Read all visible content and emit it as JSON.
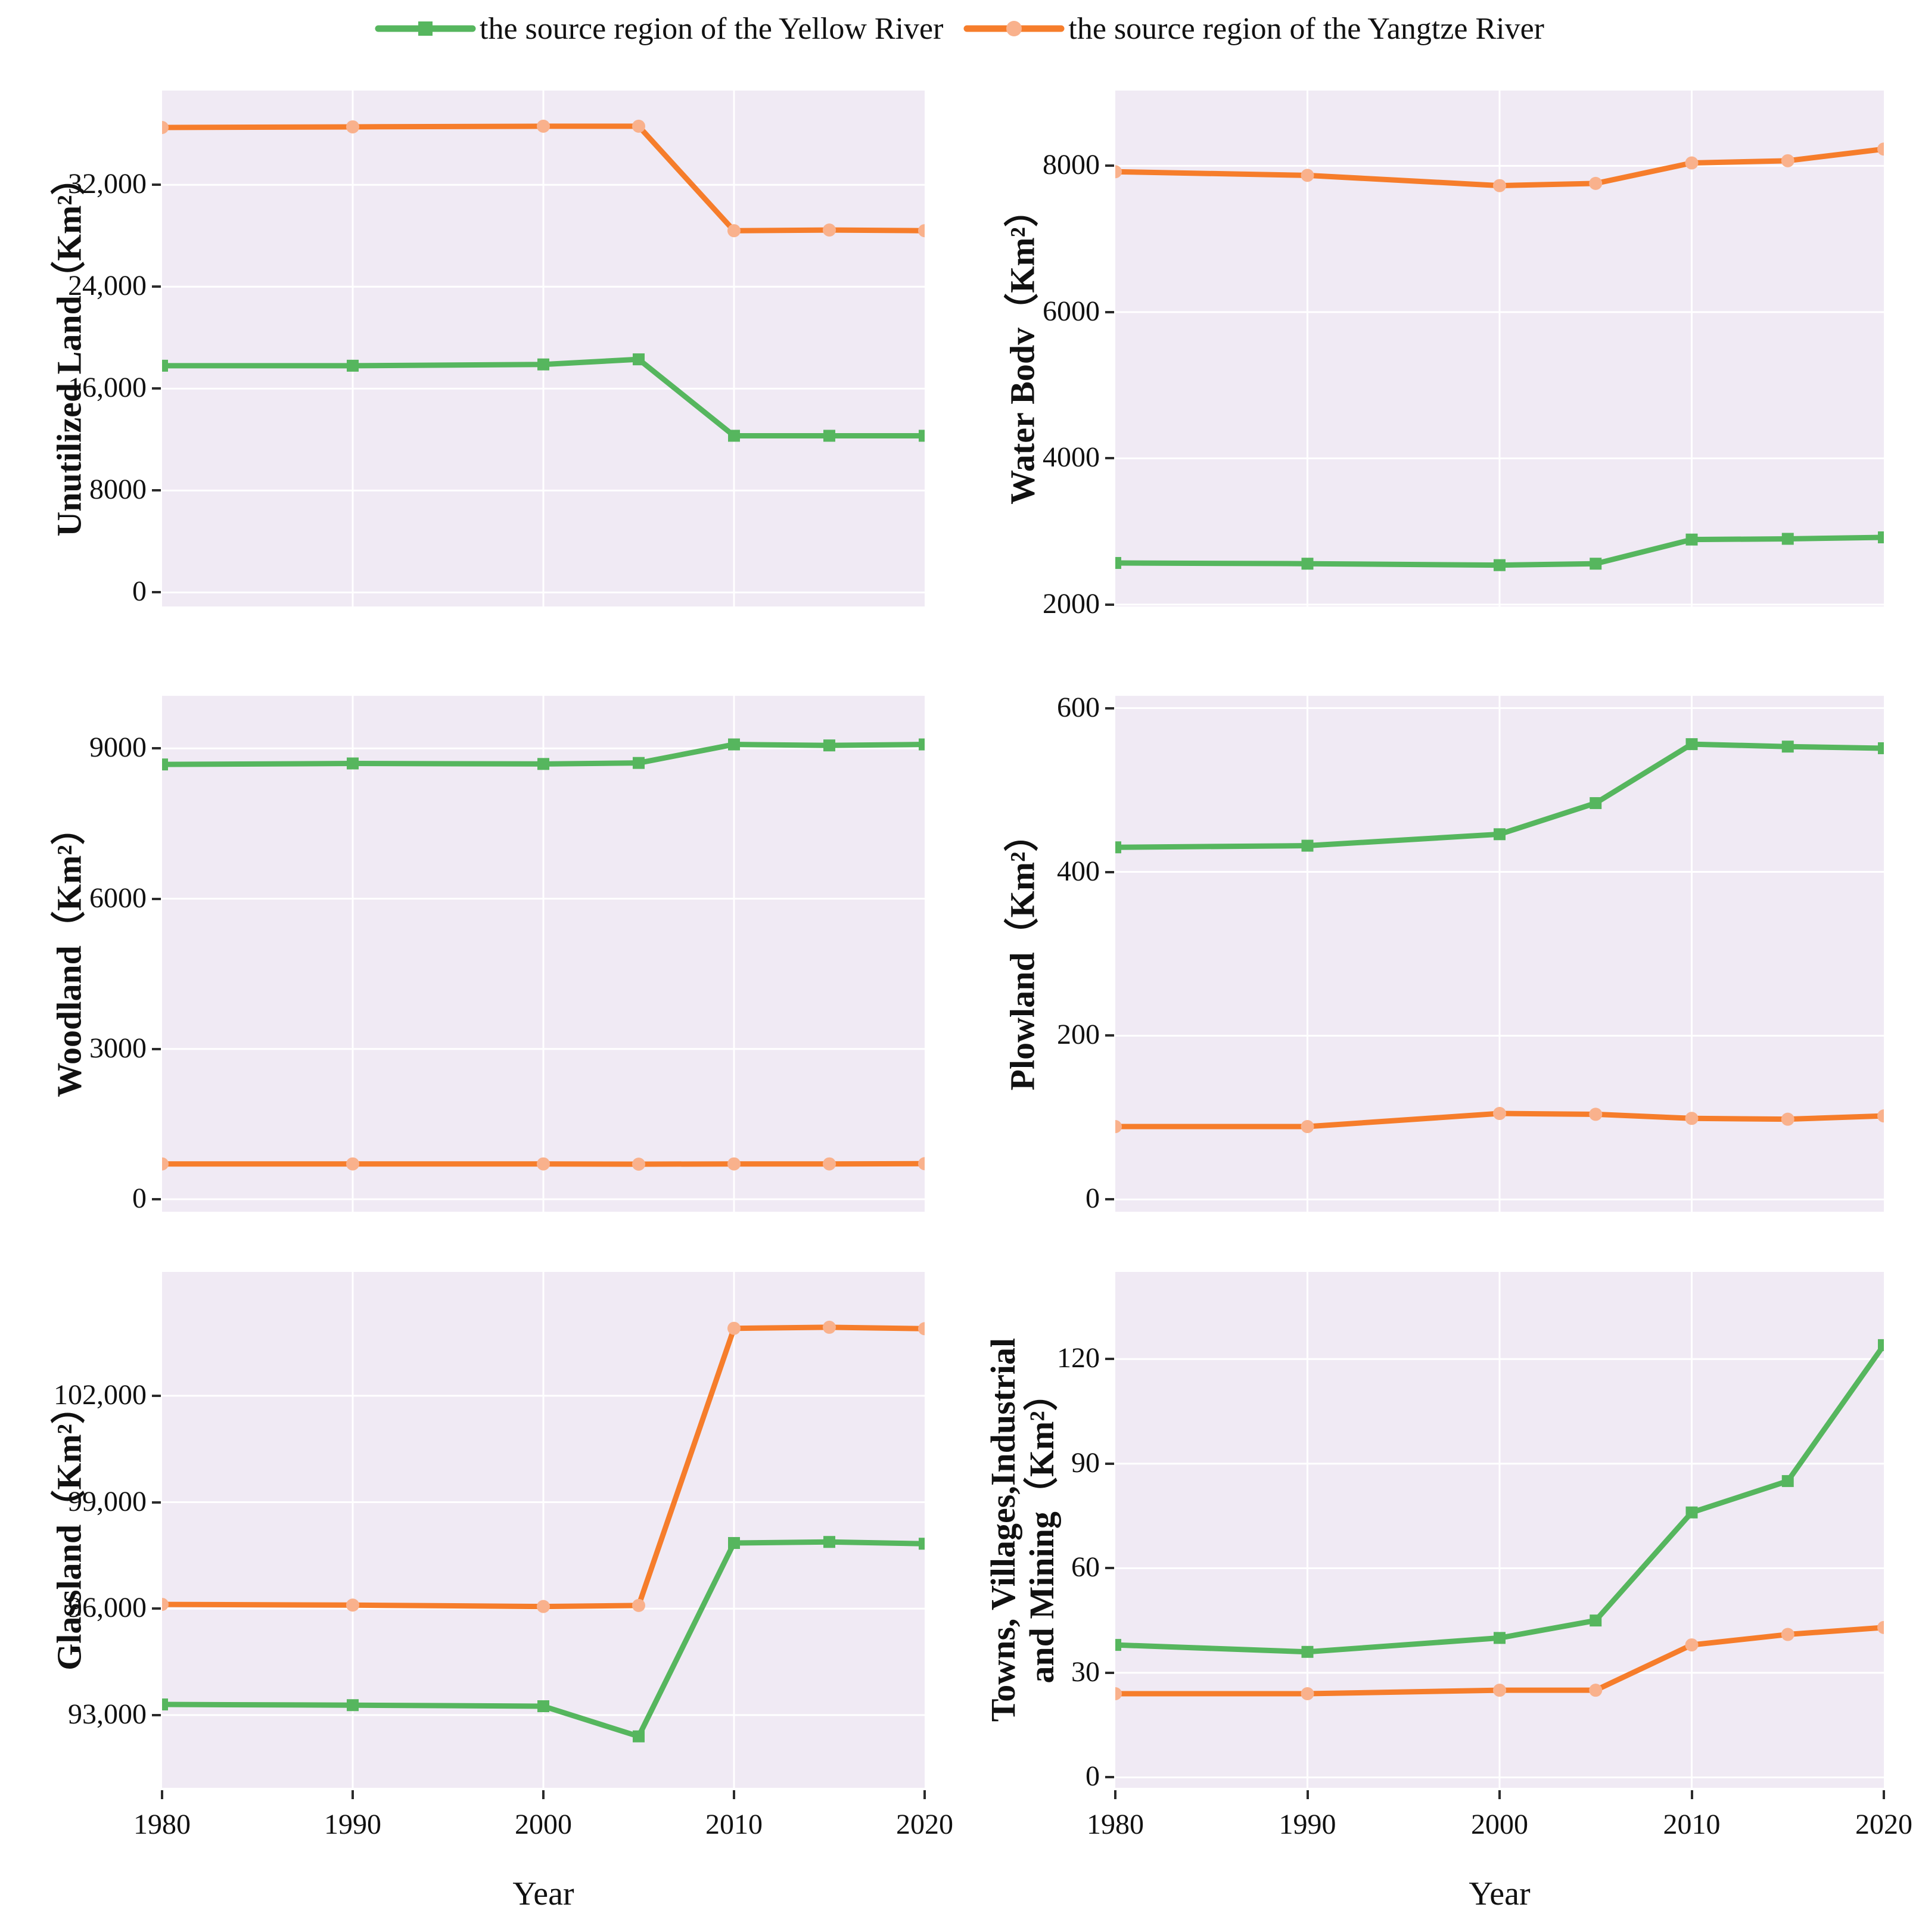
{
  "legend": {
    "items": [
      {
        "label": "the source region of the Yellow River",
        "series": "yellow",
        "marker": "square"
      },
      {
        "label": "the source region of the Yangtze River",
        "series": "yangtze",
        "marker": "circle"
      }
    ]
  },
  "colors": {
    "yellow_series": "#56b65e",
    "yangtze_series": "#f67d2b",
    "yangtze_marker_fill": "#f9b18c",
    "plot_bg": "#f0eaf4",
    "grid": "#ffffff",
    "tick_mark": "#2b2b2b",
    "text": "#111111"
  },
  "figure": {
    "x_axis_label": "Year",
    "x_ticks": [
      "1980",
      "1990",
      "2000",
      "2010",
      "2020"
    ],
    "x_tick_years": [
      1980,
      1990,
      2000,
      2010,
      2020
    ],
    "x_domain": [
      1980,
      2020
    ]
  },
  "chart_data": [
    {
      "type": "line",
      "panel": "unutilized-land",
      "ylabel_lines": [
        "Unutilized Land（Km²）"
      ],
      "xlabel": "Year",
      "x": [
        1980,
        1990,
        2000,
        2005,
        2010,
        2015,
        2020
      ],
      "xticks": [
        1980,
        1990,
        2000,
        2010,
        2020
      ],
      "ylim": [
        -1100,
        39400
      ],
      "grid": true,
      "yticks": [
        {
          "v": 0,
          "label": "0"
        },
        {
          "v": 8000,
          "label": "8000"
        },
        {
          "v": 16000,
          "label": "16,000"
        },
        {
          "v": 24000,
          "label": "24,000"
        },
        {
          "v": 32000,
          "label": "32,000"
        }
      ],
      "series": [
        {
          "name": "the source region of the Yellow River",
          "values": [
            17800,
            17800,
            17900,
            18300,
            12300,
            12300,
            12300
          ]
        },
        {
          "name": "the source region of the Yangtze River",
          "values": [
            36500,
            36550,
            36600,
            36600,
            28400,
            28450,
            28400
          ]
        }
      ]
    },
    {
      "type": "line",
      "panel": "water-body",
      "ylabel_lines": [
        "Water Bodv（Km²）"
      ],
      "xlabel": "Year",
      "x": [
        1980,
        1990,
        2000,
        2005,
        2010,
        2015,
        2020
      ],
      "xticks": [
        1980,
        1990,
        2000,
        2010,
        2020
      ],
      "ylim": [
        1975,
        9030
      ],
      "grid": true,
      "yticks": [
        {
          "v": 2000,
          "label": "2000"
        },
        {
          "v": 4000,
          "label": "4000"
        },
        {
          "v": 6000,
          "label": "6000"
        },
        {
          "v": 8000,
          "label": "8000"
        }
      ],
      "series": [
        {
          "name": "the source region of the Yellow River",
          "values": [
            2570,
            2560,
            2540,
            2560,
            2890,
            2900,
            2920
          ]
        },
        {
          "name": "the source region of the Yangtze River",
          "values": [
            7920,
            7870,
            7730,
            7760,
            8040,
            8070,
            8230
          ]
        }
      ]
    },
    {
      "type": "line",
      "panel": "woodland",
      "ylabel_lines": [
        "Woodland（Km²）"
      ],
      "xlabel": "Year",
      "x": [
        1980,
        1990,
        2000,
        2005,
        2010,
        2015,
        2020
      ],
      "xticks": [
        1980,
        1990,
        2000,
        2010,
        2020
      ],
      "ylim": [
        -250,
        10050
      ],
      "grid": true,
      "yticks": [
        {
          "v": 0,
          "label": "0"
        },
        {
          "v": 3000,
          "label": "3000"
        },
        {
          "v": 6000,
          "label": "6000"
        },
        {
          "v": 9000,
          "label": "9000"
        }
      ],
      "series": [
        {
          "name": "the source region of the Yellow River",
          "values": [
            8680,
            8700,
            8690,
            8710,
            9080,
            9060,
            9080
          ]
        },
        {
          "name": "the source region of the Yangtze River",
          "values": [
            705,
            705,
            705,
            700,
            705,
            705,
            710
          ]
        }
      ]
    },
    {
      "type": "line",
      "panel": "plowland",
      "ylabel_lines": [
        "Plowland（Km²）"
      ],
      "xlabel": "Year",
      "x": [
        1980,
        1990,
        2000,
        2005,
        2010,
        2015,
        2020
      ],
      "xticks": [
        1980,
        1990,
        2000,
        2010,
        2020
      ],
      "ylim": [
        -15,
        615
      ],
      "grid": true,
      "yticks": [
        {
          "v": 0,
          "label": "0"
        },
        {
          "v": 200,
          "label": "200"
        },
        {
          "v": 400,
          "label": "400"
        },
        {
          "v": 600,
          "label": "600"
        }
      ],
      "series": [
        {
          "name": "the source region of the Yellow River",
          "values": [
            430,
            432,
            446,
            484,
            556,
            553,
            551
          ]
        },
        {
          "name": "the source region of the Yangtze River",
          "values": [
            89,
            89,
            105,
            104,
            99,
            98,
            102
          ]
        }
      ]
    },
    {
      "type": "line",
      "panel": "glassland",
      "ylabel_lines": [
        "Glassland（Km²）"
      ],
      "xlabel": "Year",
      "x": [
        1980,
        1990,
        2000,
        2005,
        2010,
        2015,
        2020
      ],
      "xticks": [
        1980,
        1990,
        2000,
        2010,
        2020
      ],
      "ylim": [
        90950,
        105490
      ],
      "grid": true,
      "yticks": [
        {
          "v": 93000,
          "label": "93,000"
        },
        {
          "v": 96000,
          "label": "96,000"
        },
        {
          "v": 99000,
          "label": "99,000"
        },
        {
          "v": 102000,
          "label": "102,000"
        }
      ],
      "series": [
        {
          "name": "the source region of the Yellow River",
          "values": [
            93300,
            93280,
            93250,
            92400,
            97850,
            97880,
            97830
          ]
        },
        {
          "name": "the source region of the Yangtze River",
          "values": [
            96120,
            96100,
            96060,
            96090,
            103900,
            103930,
            103890
          ]
        }
      ]
    },
    {
      "type": "line",
      "panel": "towns-villages-industrial-mining",
      "ylabel_lines": [
        "Towns, Villages,Industrial",
        "and Mining（Km²）"
      ],
      "xlabel": "Year",
      "x": [
        1980,
        1990,
        2000,
        2005,
        2010,
        2015,
        2020
      ],
      "xticks": [
        1980,
        1990,
        2000,
        2010,
        2020
      ],
      "ylim": [
        -3,
        145
      ],
      "grid": true,
      "yticks": [
        {
          "v": 0,
          "label": "0"
        },
        {
          "v": 30,
          "label": "30"
        },
        {
          "v": 60,
          "label": "60"
        },
        {
          "v": 90,
          "label": "90"
        },
        {
          "v": 120,
          "label": "120"
        }
      ],
      "series": [
        {
          "name": "the source region of the Yellow River",
          "values": [
            38,
            36,
            40,
            45,
            76,
            85,
            124
          ]
        },
        {
          "name": "the source region of the Yangtze River",
          "values": [
            24,
            24,
            25,
            25,
            38,
            41,
            43
          ]
        }
      ]
    }
  ]
}
